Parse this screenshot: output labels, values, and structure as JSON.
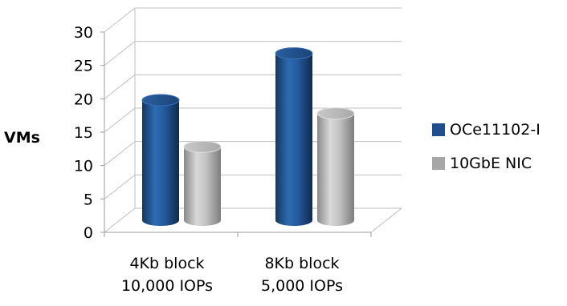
{
  "chart_data": {
    "type": "bar",
    "style": "3d-cylinder",
    "title": "",
    "xlabel": "",
    "ylabel": "VMs",
    "ylim": [
      0,
      30
    ],
    "yticks": [
      0,
      5,
      10,
      15,
      20,
      25,
      30
    ],
    "grid": true,
    "legend_position": "right",
    "categories": [
      [
        "4Kb block",
        "10,000 IOPs"
      ],
      [
        "8Kb block",
        "5,000 IOPs"
      ]
    ],
    "series": [
      {
        "name": "OCe11102-I",
        "color": "#1f4e8c",
        "values": [
          18,
          25
        ]
      },
      {
        "name": "10GbE NIC",
        "color": "#a6a6a6",
        "values": [
          11,
          16
        ]
      }
    ]
  }
}
